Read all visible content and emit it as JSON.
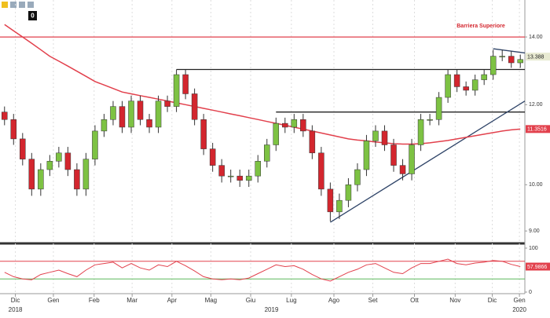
{
  "toolbar": {
    "badge": "0"
  },
  "chart_data": [
    {
      "type": "candlestick",
      "annotation": "Barriera Superiore",
      "log_scale": true,
      "xlim": [
        -0.5,
        57.5
      ],
      "ylim": [
        8.78,
        15.23
      ],
      "yticks": [
        {
          "value": 14,
          "label": "14.00"
        },
        {
          "value": 12,
          "label": "12.00"
        },
        {
          "value": 10,
          "label": "10.00"
        },
        {
          "value": 9,
          "label": "9.00"
        }
      ],
      "xticks": [
        {
          "value": 1.2,
          "label": "Dic"
        },
        {
          "value": 5.4,
          "label": "Gen"
        },
        {
          "value": 9.9,
          "label": "Feb"
        },
        {
          "value": 14.1,
          "label": "Mar"
        },
        {
          "value": 18.5,
          "label": "Apr"
        },
        {
          "value": 22.8,
          "label": "Mag"
        },
        {
          "value": 27.2,
          "label": "Giu"
        },
        {
          "value": 31.7,
          "label": "Lug"
        },
        {
          "value": 36.4,
          "label": "Ago"
        },
        {
          "value": 40.7,
          "label": "Set"
        },
        {
          "value": 45.3,
          "label": "Ott"
        },
        {
          "value": 49.8,
          "label": "Nov"
        },
        {
          "value": 53.9,
          "label": "Dic"
        },
        {
          "value": 56.9,
          "label": "Gen"
        }
      ],
      "years": [
        {
          "value": 1.2,
          "label": "2018"
        },
        {
          "value": 29.5,
          "label": "2019"
        },
        {
          "value": 56.9,
          "label": "2020"
        }
      ],
      "up_color": "#7dc243",
      "down_color": "#d3262e",
      "open": [
        11.8,
        11.6,
        11.1,
        10.6,
        9.9,
        10.35,
        10.55,
        10.75,
        10.35,
        9.9,
        10.6,
        11.3,
        11.6,
        11.95,
        11.4,
        12.1,
        11.6,
        11.4,
        12.1,
        11.95,
        12.85,
        12.3,
        11.6,
        10.85,
        10.45,
        10.2,
        10.2,
        10.1,
        10.2,
        10.55,
        10.95,
        11.5,
        11.4,
        11.6,
        11.3,
        10.75,
        9.9,
        9.4,
        9.65,
        10.0,
        10.35,
        11.05,
        11.3,
        10.95,
        10.45,
        10.25,
        10.95,
        11.6,
        11.6,
        12.2,
        12.85,
        12.5,
        12.4,
        12.7,
        12.85,
        13.4,
        13.4,
        13.2
      ],
      "high": [
        11.95,
        11.75,
        11.25,
        10.75,
        10.5,
        10.7,
        10.9,
        10.9,
        10.5,
        10.75,
        11.45,
        11.75,
        12.1,
        12.1,
        12.25,
        12.25,
        11.75,
        12.25,
        12.25,
        13.0,
        13.0,
        12.45,
        11.75,
        11.0,
        10.6,
        10.35,
        10.35,
        10.35,
        10.7,
        11.1,
        11.65,
        11.65,
        11.75,
        11.75,
        11.45,
        10.9,
        10.05,
        9.8,
        10.15,
        10.5,
        11.2,
        11.45,
        11.45,
        11.1,
        10.6,
        11.1,
        11.75,
        11.75,
        12.35,
        13.0,
        13.0,
        12.65,
        12.85,
        13.0,
        13.6,
        13.6,
        13.55,
        13.45
      ],
      "low": [
        11.45,
        10.95,
        10.45,
        9.75,
        9.75,
        10.2,
        10.4,
        10.2,
        9.75,
        9.75,
        10.45,
        11.15,
        11.45,
        11.25,
        11.25,
        11.45,
        11.25,
        11.25,
        11.8,
        11.8,
        12.15,
        11.45,
        10.7,
        10.3,
        10.05,
        10.05,
        9.95,
        9.95,
        10.05,
        10.4,
        10.8,
        11.25,
        11.25,
        11.15,
        10.6,
        9.75,
        9.2,
        9.25,
        9.5,
        9.85,
        10.2,
        10.9,
        10.8,
        10.3,
        10.1,
        10.1,
        10.8,
        11.45,
        11.45,
        12.05,
        12.35,
        12.25,
        12.25,
        12.55,
        12.7,
        13.25,
        13.05,
        13.05
      ],
      "close": [
        11.6,
        11.1,
        10.6,
        9.9,
        10.35,
        10.55,
        10.75,
        10.35,
        9.9,
        10.6,
        11.3,
        11.6,
        11.95,
        11.4,
        12.1,
        11.6,
        11.4,
        12.1,
        11.95,
        12.85,
        12.3,
        11.6,
        10.85,
        10.45,
        10.2,
        10.2,
        10.1,
        10.2,
        10.55,
        10.95,
        11.5,
        11.4,
        11.6,
        11.3,
        10.75,
        9.9,
        9.4,
        9.65,
        10.0,
        10.35,
        11.05,
        11.3,
        10.95,
        10.45,
        10.25,
        10.95,
        11.6,
        11.6,
        12.2,
        12.85,
        12.5,
        12.4,
        12.7,
        12.85,
        13.4,
        13.4,
        13.2,
        13.3
      ],
      "series": [
        {
          "color": "#e2404c",
          "values": [
            14.4,
            14.2,
            14.0,
            13.8,
            13.6,
            13.4,
            13.25,
            13.1,
            12.95,
            12.8,
            12.65,
            12.55,
            12.45,
            12.35,
            12.3,
            12.25,
            12.2,
            12.15,
            12.1,
            12.05,
            12.0,
            11.95,
            11.9,
            11.85,
            11.8,
            11.75,
            11.7,
            11.65,
            11.6,
            11.55,
            11.5,
            11.45,
            11.4,
            11.35,
            11.3,
            11.25,
            11.2,
            11.15,
            11.1,
            11.07,
            11.05,
            11.02,
            11.0,
            10.98,
            10.97,
            10.97,
            10.98,
            11.0,
            11.03,
            11.06,
            11.1,
            11.14,
            11.18,
            11.22,
            11.26,
            11.3,
            11.33,
            11.35
          ]
        }
      ],
      "last_price": 13.388,
      "ma_last": 11.3516,
      "trendlines": [
        {
          "x": [
            -0.5,
            57.5
          ],
          "values": [
            14,
            14
          ],
          "color": "#e2404c"
        },
        {
          "x": [
            19,
            57.5
          ],
          "values": [
            13,
            13
          ],
          "color": "#222222"
        },
        {
          "x": [
            30,
            57.5
          ],
          "values": [
            11.8,
            11.8
          ],
          "color": "#222222"
        },
        {
          "x": [
            36,
            57.5
          ],
          "values": [
            9.18,
            12.1
          ],
          "color": "#2f4468"
        },
        {
          "x": [
            54,
            57.5
          ],
          "values": [
            13.63,
            13.5
          ],
          "color": "#2f4468"
        }
      ]
    },
    {
      "type": "line",
      "xlim": [
        -0.5,
        57.5
      ],
      "ylim": [
        0,
        100
      ],
      "yticks": [
        0,
        100
      ],
      "levels": [
        {
          "value": 70,
          "color": "#e2404c"
        },
        {
          "value": 30,
          "color": "#5cb85c"
        }
      ],
      "series": [
        {
          "color": "#e2404c",
          "values": [
            45,
            35,
            30,
            28,
            40,
            45,
            50,
            42,
            35,
            50,
            62,
            65,
            68,
            55,
            65,
            55,
            50,
            62,
            58,
            70,
            60,
            48,
            35,
            30,
            28,
            30,
            28,
            32,
            42,
            52,
            62,
            58,
            60,
            52,
            40,
            30,
            25,
            35,
            45,
            52,
            62,
            65,
            55,
            45,
            42,
            55,
            65,
            65,
            70,
            75,
            65,
            62,
            66,
            68,
            72,
            70,
            63,
            58
          ]
        }
      ],
      "last_value": 57.9866
    }
  ]
}
